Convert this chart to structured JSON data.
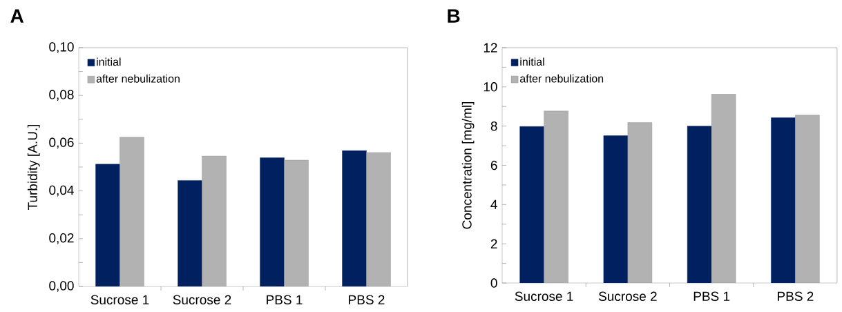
{
  "chart_data": [
    {
      "type": "bar",
      "title": "A",
      "ylabel": "Turbidity  [A.U.]",
      "categories": [
        "Sucrose 1",
        "Sucrose 2",
        "PBS 1",
        "PBS 2"
      ],
      "series": [
        {
          "name": "initial",
          "color": "#002060",
          "values": [
            0.0512,
            0.0444,
            0.0539,
            0.0569
          ]
        },
        {
          "name": "after nebulization",
          "color": "#b2b2b2",
          "values": [
            0.0625,
            0.0546,
            0.0529,
            0.0561
          ]
        }
      ],
      "ylim": [
        0,
        0.1
      ],
      "yticks": [
        {
          "value": 0,
          "label": "0,00"
        },
        {
          "value": 0.01,
          "label": null
        },
        {
          "value": 0.02,
          "label": "0,02"
        },
        {
          "value": 0.03,
          "label": null
        },
        {
          "value": 0.04,
          "label": "0,04"
        },
        {
          "value": 0.05,
          "label": null
        },
        {
          "value": 0.06,
          "label": "0,06"
        },
        {
          "value": 0.07,
          "label": null
        },
        {
          "value": 0.08,
          "label": "0,08"
        },
        {
          "value": 0.09,
          "label": null
        },
        {
          "value": 0.1,
          "label": "0,10"
        }
      ],
      "grid": false,
      "legend": "top left"
    },
    {
      "type": "bar",
      "title": "B",
      "ylabel": "Concentration [mg/ml]",
      "categories": [
        "Sucrose 1",
        "Sucrose 2",
        "PBS 1",
        "PBS 2"
      ],
      "series": [
        {
          "name": "initial",
          "color": "#002060",
          "values": [
            7.98,
            7.51,
            8.0,
            8.43
          ]
        },
        {
          "name": "after nebulization",
          "color": "#b2b2b2",
          "values": [
            8.77,
            8.18,
            9.63,
            8.56
          ]
        }
      ],
      "ylim": [
        0,
        12
      ],
      "yticks": [
        0,
        {
          "value": 1,
          "label": null
        },
        2,
        {
          "value": 3,
          "label": null
        },
        4,
        {
          "value": 5,
          "label": null
        },
        6,
        {
          "value": 7,
          "label": null
        },
        8,
        {
          "value": 9,
          "label": null
        },
        10,
        {
          "value": 11,
          "label": null
        },
        12
      ],
      "grid": false,
      "legend": "top left"
    }
  ]
}
